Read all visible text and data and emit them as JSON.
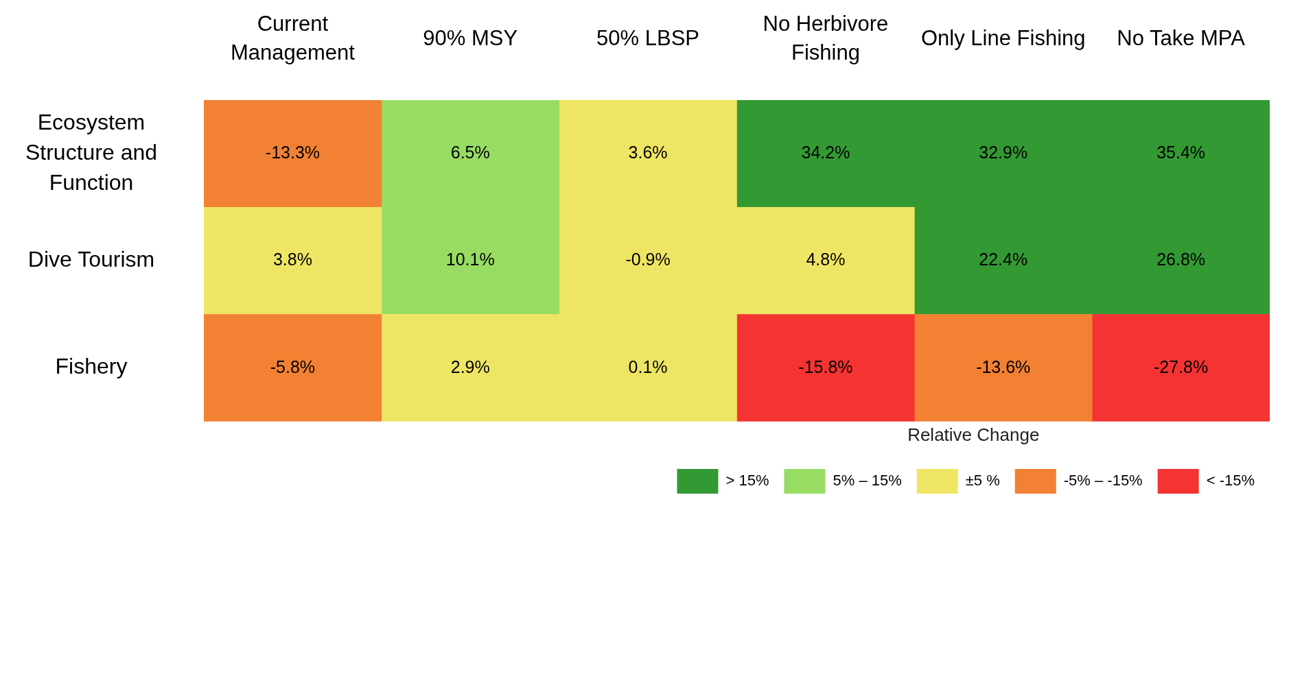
{
  "chart_data": {
    "type": "heatmap",
    "categories": [
      "Current Management",
      "90% MSY",
      "50% LBSP",
      "No Herbivore Fishing",
      "Only Line Fishing",
      "No Take MPA"
    ],
    "y_categories": [
      "Ecosystem Structure and Function",
      "Dive Tourism",
      "Fishery"
    ],
    "cells": [
      [
        -13.3,
        6.5,
        3.6,
        34.2,
        32.9,
        35.4
      ],
      [
        3.8,
        10.1,
        -0.9,
        4.8,
        22.4,
        26.8
      ],
      [
        -5.8,
        2.9,
        0.1,
        -15.8,
        -13.6,
        -27.8
      ]
    ],
    "cell_labels": [
      [
        "-13.3%",
        "6.5%",
        "3.6%",
        "34.2%",
        "32.9%",
        "35.4%"
      ],
      [
        "3.8%",
        "10.1%",
        "-0.9%",
        "4.8%",
        "22.4%",
        "26.8%"
      ],
      [
        "-5.8%",
        "2.9%",
        "0.1%",
        "-15.8%",
        "-13.6%",
        "-27.8%"
      ]
    ],
    "colors": [
      [
        "#f28133",
        "#98dc64",
        "#efe564",
        "#339933",
        "#339933",
        "#339933"
      ],
      [
        "#efe564",
        "#98dc64",
        "#efe564",
        "#efe564",
        "#339933",
        "#339933"
      ],
      [
        "#f28133",
        "#efe564",
        "#efe564",
        "#f53333",
        "#f28133",
        "#f53333"
      ]
    ],
    "legend_title": "Relative Change",
    "legend": "bottom right",
    "series": [
      {
        "name": "> 15%",
        "color": "#339933",
        "values": [
          null,
          null,
          null,
          null,
          null,
          null
        ]
      },
      {
        "name": "5% – 15%",
        "color": "#98dc64",
        "values": [
          null,
          null,
          null,
          null,
          null,
          null
        ]
      },
      {
        "name": "±5 %",
        "color": "#efe564",
        "values": [
          null,
          null,
          null,
          null,
          null,
          null
        ]
      },
      {
        "name": "-5% – -15%",
        "color": "#f28133",
        "values": [
          null,
          null,
          null,
          null,
          null,
          null
        ]
      },
      {
        "name": "< -15%",
        "color": "#f53333",
        "values": [
          null,
          null,
          null,
          null,
          null,
          null
        ]
      }
    ]
  }
}
